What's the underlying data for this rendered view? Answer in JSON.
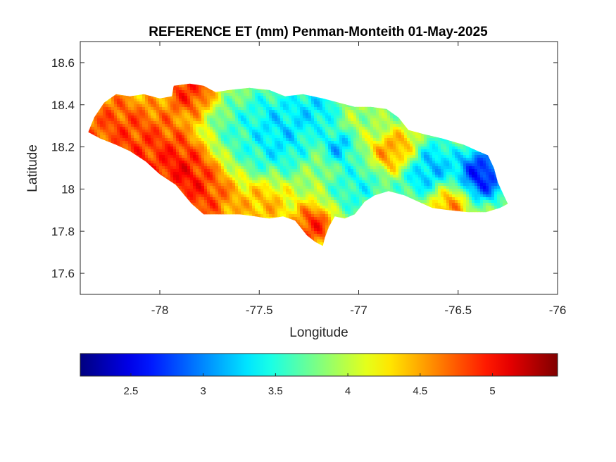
{
  "chart_data": {
    "type": "heatmap",
    "title": "REFERENCE ET (mm) Penman-Monteith 01-May-2025",
    "xlabel": "Longitude",
    "ylabel": "Latitude",
    "xlim": [
      -78.4,
      -76.0
    ],
    "ylim": [
      17.5,
      18.7
    ],
    "x_ticks": [
      -78,
      -77.5,
      -77,
      -76.5,
      -76
    ],
    "x_tick_labels": [
      "-78",
      "-77.5",
      "-77",
      "-76.5",
      "-76"
    ],
    "y_ticks": [
      17.6,
      17.8,
      18.0,
      18.2,
      18.4,
      18.6
    ],
    "y_tick_labels": [
      "17.6",
      "17.8",
      "18",
      "18.2",
      "18.4",
      "18.6"
    ],
    "grid": false,
    "colormap": "jet",
    "colorbar": {
      "location": "bottom",
      "range": [
        2.15,
        5.45
      ],
      "ticks": [
        2.5,
        3,
        3.5,
        4,
        4.5,
        5
      ],
      "tick_labels": [
        "2.5",
        "3",
        "3.5",
        "4",
        "4.5",
        "5"
      ]
    },
    "island_outline": [
      [
        -78.36,
        18.27
      ],
      [
        -78.33,
        18.34
      ],
      [
        -78.28,
        18.41
      ],
      [
        -78.22,
        18.45
      ],
      [
        -78.15,
        18.44
      ],
      [
        -78.08,
        18.45
      ],
      [
        -78.0,
        18.43
      ],
      [
        -77.94,
        18.44
      ],
      [
        -77.93,
        18.49
      ],
      [
        -77.85,
        18.5
      ],
      [
        -77.78,
        18.49
      ],
      [
        -77.72,
        18.46
      ],
      [
        -77.65,
        18.47
      ],
      [
        -77.55,
        18.48
      ],
      [
        -77.45,
        18.47
      ],
      [
        -77.37,
        18.44
      ],
      [
        -77.28,
        18.45
      ],
      [
        -77.18,
        18.43
      ],
      [
        -77.1,
        18.41
      ],
      [
        -77.02,
        18.39
      ],
      [
        -76.94,
        18.39
      ],
      [
        -76.86,
        18.38
      ],
      [
        -76.8,
        18.34
      ],
      [
        -76.75,
        18.28
      ],
      [
        -76.67,
        18.26
      ],
      [
        -76.58,
        18.24
      ],
      [
        -76.47,
        18.21
      ],
      [
        -76.4,
        18.18
      ],
      [
        -76.35,
        18.16
      ],
      [
        -76.32,
        18.1
      ],
      [
        -76.3,
        18.03
      ],
      [
        -76.27,
        17.97
      ],
      [
        -76.25,
        17.93
      ],
      [
        -76.29,
        17.91
      ],
      [
        -76.36,
        17.89
      ],
      [
        -76.45,
        17.89
      ],
      [
        -76.55,
        17.9
      ],
      [
        -76.63,
        17.91
      ],
      [
        -76.7,
        17.94
      ],
      [
        -76.77,
        17.97
      ],
      [
        -76.85,
        17.99
      ],
      [
        -76.92,
        17.97
      ],
      [
        -76.97,
        17.94
      ],
      [
        -77.02,
        17.88
      ],
      [
        -77.07,
        17.86
      ],
      [
        -77.12,
        17.87
      ],
      [
        -77.15,
        17.82
      ],
      [
        -77.17,
        17.77
      ],
      [
        -77.18,
        17.73
      ],
      [
        -77.22,
        17.75
      ],
      [
        -77.26,
        17.78
      ],
      [
        -77.32,
        17.85
      ],
      [
        -77.38,
        17.87
      ],
      [
        -77.45,
        17.86
      ],
      [
        -77.52,
        17.87
      ],
      [
        -77.6,
        17.88
      ],
      [
        -77.7,
        17.88
      ],
      [
        -77.78,
        17.88
      ],
      [
        -77.84,
        17.93
      ],
      [
        -77.92,
        18.02
      ],
      [
        -78.0,
        18.07
      ],
      [
        -78.07,
        18.13
      ],
      [
        -78.15,
        18.18
      ],
      [
        -78.22,
        18.21
      ],
      [
        -78.3,
        18.24
      ],
      [
        -78.36,
        18.27
      ]
    ],
    "surface_features": [
      {
        "lon": -78.25,
        "lat": 18.3,
        "value": 5.0,
        "spread": 0.15
      },
      {
        "lon": -78.05,
        "lat": 18.18,
        "value": 5.1,
        "spread": 0.18
      },
      {
        "lon": -77.88,
        "lat": 18.07,
        "value": 5.3,
        "spread": 0.13
      },
      {
        "lon": -77.78,
        "lat": 17.97,
        "value": 5.0,
        "spread": 0.15
      },
      {
        "lon": -77.85,
        "lat": 18.47,
        "value": 5.2,
        "spread": 0.1
      },
      {
        "lon": -77.23,
        "lat": 17.82,
        "value": 5.2,
        "spread": 0.08
      },
      {
        "lon": -77.48,
        "lat": 17.92,
        "value": 4.6,
        "spread": 0.1
      },
      {
        "lon": -77.42,
        "lat": 18.27,
        "value": 3.0,
        "spread": 0.15
      },
      {
        "lon": -77.22,
        "lat": 18.38,
        "value": 3.1,
        "spread": 0.1
      },
      {
        "lon": -77.1,
        "lat": 18.2,
        "value": 2.9,
        "spread": 0.06
      },
      {
        "lon": -77.58,
        "lat": 18.25,
        "value": 3.5,
        "spread": 0.15
      },
      {
        "lon": -77.0,
        "lat": 18.02,
        "value": 3.3,
        "spread": 0.12
      },
      {
        "lon": -76.85,
        "lat": 18.17,
        "value": 4.8,
        "spread": 0.08
      },
      {
        "lon": -76.78,
        "lat": 18.2,
        "value": 4.7,
        "spread": 0.08
      },
      {
        "lon": -76.65,
        "lat": 18.1,
        "value": 2.9,
        "spread": 0.12
      },
      {
        "lon": -76.38,
        "lat": 18.07,
        "value": 2.2,
        "spread": 0.1
      },
      {
        "lon": -76.55,
        "lat": 17.93,
        "value": 4.8,
        "spread": 0.08
      },
      {
        "lon": -76.88,
        "lat": 18.33,
        "value": 3.8,
        "spread": 0.1
      }
    ],
    "base_value": 4.0
  }
}
